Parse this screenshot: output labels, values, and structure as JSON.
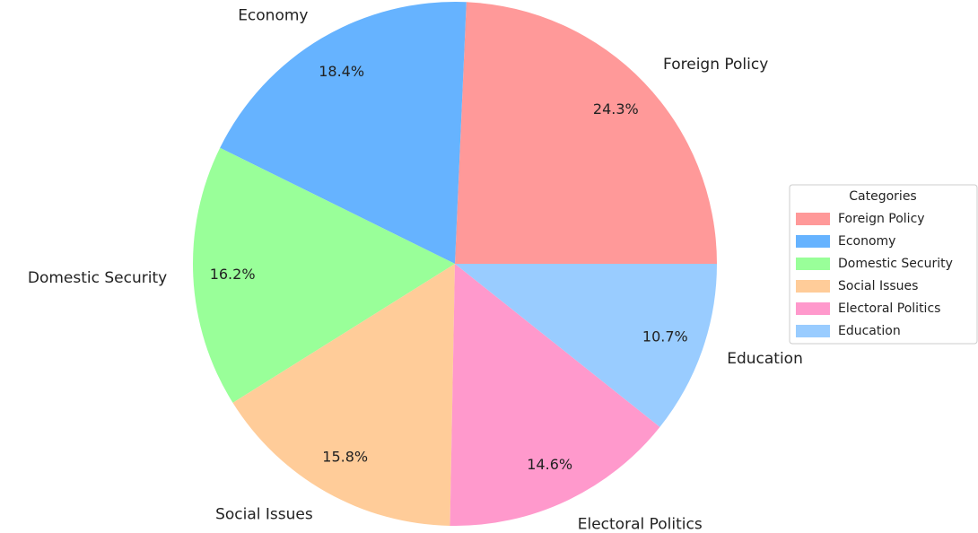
{
  "chart_data": {
    "type": "pie",
    "categories": [
      "Foreign Policy",
      "Economy",
      "Domestic Security",
      "Social Issues",
      "Electoral Politics",
      "Education"
    ],
    "values": [
      24.3,
      18.4,
      16.2,
      15.8,
      14.6,
      10.7
    ],
    "value_labels": [
      "24.3%",
      "18.4%",
      "16.2%",
      "15.8%",
      "14.6%",
      "10.7%"
    ],
    "colors": [
      "#ff9999",
      "#66b3ff",
      "#99ff99",
      "#ffcc99",
      "#ff99cc",
      "#99ccff"
    ],
    "legend_title": "Categories",
    "legend": "right"
  }
}
